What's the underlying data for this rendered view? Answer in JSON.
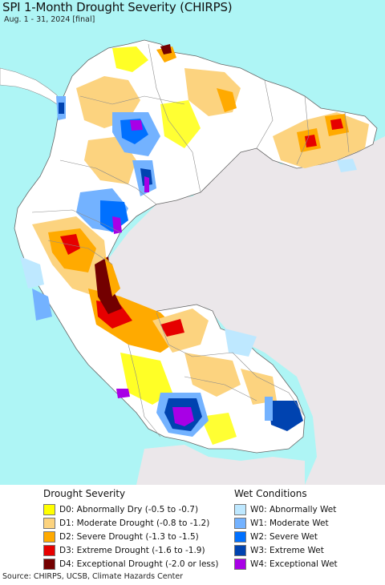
{
  "title": "SPI 1-Month Drought Severity (CHIRPS)",
  "subtitle": "Aug. 1 - 31, 2024 [final]",
  "colors": {
    "ocean": "#aef5f5",
    "land_outside": "#ebe7ea",
    "land_normal": "#ffffff",
    "borders": "#8c8c8c"
  },
  "legend": {
    "drought": {
      "heading": "Drought Severity",
      "items": [
        {
          "label": "D0: Abnormally Dry (-0.5 to -0.7)",
          "color": "#ffff00"
        },
        {
          "label": "D1: Moderate Drought (-0.8 to -1.2)",
          "color": "#fcd37f"
        },
        {
          "label": "D2: Severe Drought (-1.3 to -1.5)",
          "color": "#ffaa00"
        },
        {
          "label": "D3: Extreme Drought (-1.6 to -1.9)",
          "color": "#e60000"
        },
        {
          "label": "D4: Exceptional Drought (-2.0 or less)",
          "color": "#730000"
        }
      ]
    },
    "wet": {
      "heading": "Wet Conditions",
      "items": [
        {
          "label": "W0: Abnormally Wet",
          "color": "#bee8ff"
        },
        {
          "label": "W1: Moderate Wet",
          "color": "#73b2ff"
        },
        {
          "label": "W2: Severe Wet",
          "color": "#0070ff"
        },
        {
          "label": "W3: Extreme Wet",
          "color": "#0043b0"
        },
        {
          "label": "W4: Exceptional Wet",
          "color": "#a800e6"
        }
      ]
    }
  },
  "source": "Source: CHIRPS, UCSB, Climate Hazards Center"
}
